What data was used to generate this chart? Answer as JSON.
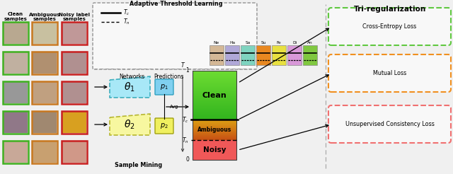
{
  "bg": "white",
  "atl_title": "Adaptive Threshold Learning",
  "tri_title": "Tri-regularization",
  "emotions": [
    "Ne",
    "Ha",
    "Sa",
    "Su",
    "Fe",
    "Di",
    "An"
  ],
  "emo_colors": [
    "#d4b896",
    "#b0a8d8",
    "#7fd4c0",
    "#e88820",
    "#e8e040",
    "#d898d8",
    "#80c840"
  ],
  "col_headers": [
    "Clean\nsamples",
    "Ambiguous\nsamples",
    "Noisy label\nsamples"
  ],
  "loss_labels": [
    "Cross-Entropy Loss",
    "Mutual Loss",
    "Unsupervised Consistency Loss"
  ],
  "loss_colors": [
    "#70d050",
    "#f0a030",
    "#f07878"
  ],
  "bar_clean_top": "#60e030",
  "bar_clean_bot": "#50c020",
  "bar_ambig_top": "#c8a020",
  "bar_ambig_bot": "#e06820",
  "bar_noisy_color": "#f05858",
  "net1_color": "#a0e8f8",
  "net2_color": "#f8f898",
  "p1_color": "#80d0f0",
  "p2_color": "#f0f060",
  "border_green": "#40b020",
  "border_orange": "#c87820",
  "border_red": "#c82020",
  "sample_mining": "Sample Mining",
  "networks": "Networks",
  "predictions": "Predictions",
  "avg": "Avg"
}
